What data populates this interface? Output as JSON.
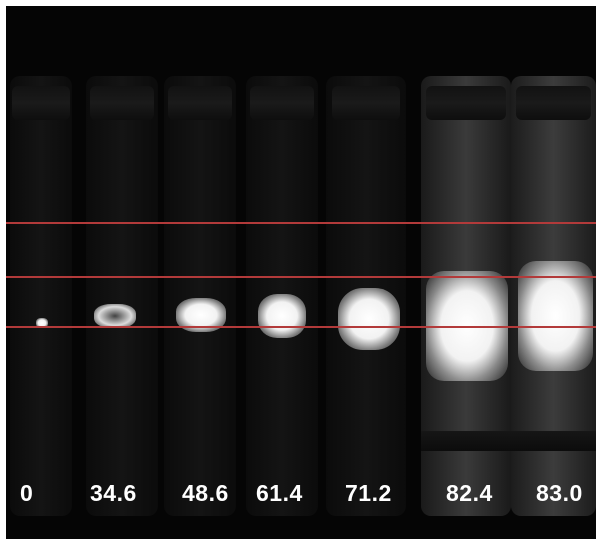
{
  "labels": {
    "c1": "0",
    "c2": "34.6",
    "c3": "48.6",
    "c4": "61.4",
    "c5": "71.2",
    "c6": "82.4",
    "c7": "83.0"
  },
  "colors": {
    "background": "#050505",
    "reference_lines": "#b23a3a",
    "label_text": "#ffffff"
  }
}
